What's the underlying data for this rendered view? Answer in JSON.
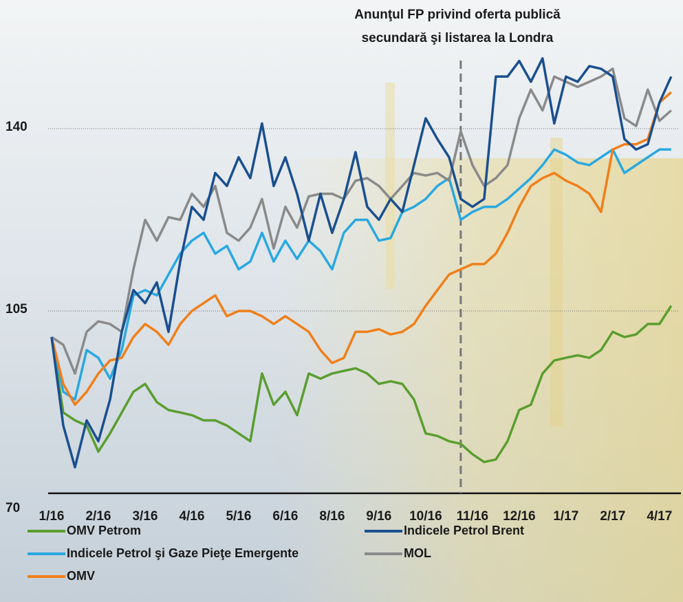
{
  "chart_data": {
    "type": "line",
    "annotation": {
      "x": 8.75,
      "text": [
        "Anunţul FP privind oferta publică",
        "secundară şi listarea la Londra"
      ]
    },
    "x": [
      0,
      0.25,
      0.5,
      0.75,
      1,
      1.25,
      1.5,
      1.75,
      2,
      2.25,
      2.5,
      2.75,
      3,
      3.25,
      3.5,
      3.75,
      4,
      4.25,
      4.5,
      4.75,
      5,
      5.25,
      5.5,
      5.75,
      6,
      6.25,
      6.5,
      6.75,
      7,
      7.25,
      7.5,
      7.75,
      8,
      8.25,
      8.5,
      8.75,
      9,
      9.25,
      9.5,
      9.75,
      10,
      10.25,
      10.5,
      10.75,
      11,
      11.25,
      11.5,
      11.75,
      12,
      12.25,
      12.5,
      12.75,
      13,
      13.25
    ],
    "xlim": [
      0,
      13.4
    ],
    "xticks": [
      {
        "value": 0,
        "label": "1/16"
      },
      {
        "value": 1,
        "label": "2/16"
      },
      {
        "value": 2,
        "label": "3/16"
      },
      {
        "value": 3,
        "label": "4/16"
      },
      {
        "value": 4,
        "label": "5/16"
      },
      {
        "value": 5,
        "label": "6/16"
      },
      {
        "value": 6,
        "label": "8/16"
      },
      {
        "value": 7,
        "label": "9/16"
      },
      {
        "value": 8,
        "label": "10/16"
      },
      {
        "value": 9,
        "label": "11/16"
      },
      {
        "value": 10,
        "label": "12/16"
      },
      {
        "value": 11,
        "label": "1/17"
      },
      {
        "value": 12,
        "label": "2/17"
      },
      {
        "value": 13,
        "label": "4/17"
      }
    ],
    "ylim": [
      70,
      154
    ],
    "yticks": [
      70,
      105,
      140
    ],
    "grid": true,
    "series": [
      {
        "name": "OMV Petrom",
        "color": "#5a9e2f",
        "values": [
          100,
          85.5,
          84,
          83,
          78,
          81.5,
          85.5,
          89.5,
          91,
          87.5,
          86,
          85.5,
          85,
          84,
          84,
          83,
          81.5,
          80,
          93,
          87,
          89.5,
          85,
          93,
          92,
          93,
          93.5,
          94,
          93,
          91,
          91.5,
          91,
          88,
          81.5,
          81,
          80,
          79.5,
          77.5,
          76,
          76.5,
          80,
          86,
          87,
          93,
          95.5,
          96,
          96.5,
          96,
          97.5,
          101,
          100,
          100.5,
          102.5,
          102.5,
          106
        ]
      },
      {
        "name": "Indicele Petrol Brent",
        "color": "#1a4f8f",
        "values": [
          100,
          83,
          75,
          84,
          80,
          88,
          101,
          109,
          106.5,
          110.5,
          101,
          114.5,
          125,
          122.5,
          131.5,
          129,
          134.5,
          130.5,
          141,
          129,
          134.5,
          127.5,
          118.5,
          127.5,
          120,
          126.5,
          135.5,
          125,
          122.5,
          126.5,
          124,
          133,
          142,
          138,
          134.5,
          126.5,
          125,
          126.5,
          150,
          150,
          153,
          149,
          153.5,
          141,
          150,
          149,
          152,
          151.5,
          150,
          138,
          136,
          137,
          145,
          150
        ]
      },
      {
        "name": "Indicele Petrol şi Gaze Pieţe Emergente",
        "color": "#29a8e0",
        "values": [
          100,
          89.5,
          88,
          97.5,
          96,
          92,
          97.5,
          108,
          109,
          108,
          112,
          116,
          118.5,
          120,
          116,
          117.5,
          113,
          114.5,
          120,
          114.5,
          118.5,
          115,
          118.5,
          116.5,
          113,
          120,
          122.5,
          122.5,
          118.5,
          119,
          124,
          125,
          126.5,
          129,
          130.5,
          122.5,
          124,
          125,
          125,
          126.5,
          128.5,
          130.5,
          133,
          136,
          135,
          133.5,
          133,
          134.5,
          136,
          131.5,
          133,
          134.5,
          136,
          136
        ]
      },
      {
        "name": "MOL",
        "color": "#8a8a8a",
        "values": [
          100,
          98.5,
          93,
          101,
          103,
          102.5,
          101,
          113,
          122.5,
          118.5,
          123,
          122.5,
          127.5,
          125,
          129,
          120,
          118.5,
          121,
          126.5,
          117,
          125,
          121,
          127,
          127.5,
          127.5,
          126.5,
          130,
          130.5,
          129,
          126.5,
          129,
          131.5,
          131,
          131.5,
          130,
          139.5,
          133,
          129,
          130.5,
          133,
          142,
          147.5,
          143.5,
          150,
          149,
          148,
          149,
          150,
          151.5,
          142,
          140.5,
          147.5,
          141.5,
          143.5
        ]
      },
      {
        "name": "OMV",
        "color": "#f07f1a",
        "values": [
          100,
          91,
          87,
          89.5,
          93,
          95.5,
          96,
          100,
          102.5,
          101,
          98.5,
          102.5,
          105,
          106.5,
          108,
          104,
          105,
          105,
          104,
          102.5,
          104,
          102.5,
          101,
          97.5,
          95,
          96,
          101,
          101,
          101.5,
          100.5,
          101,
          102.5,
          106,
          109,
          112,
          113,
          114,
          114,
          116,
          120,
          125,
          129,
          130.5,
          131.5,
          130,
          129,
          127.5,
          124,
          136,
          137,
          137,
          138,
          145,
          147
        ]
      }
    ]
  }
}
